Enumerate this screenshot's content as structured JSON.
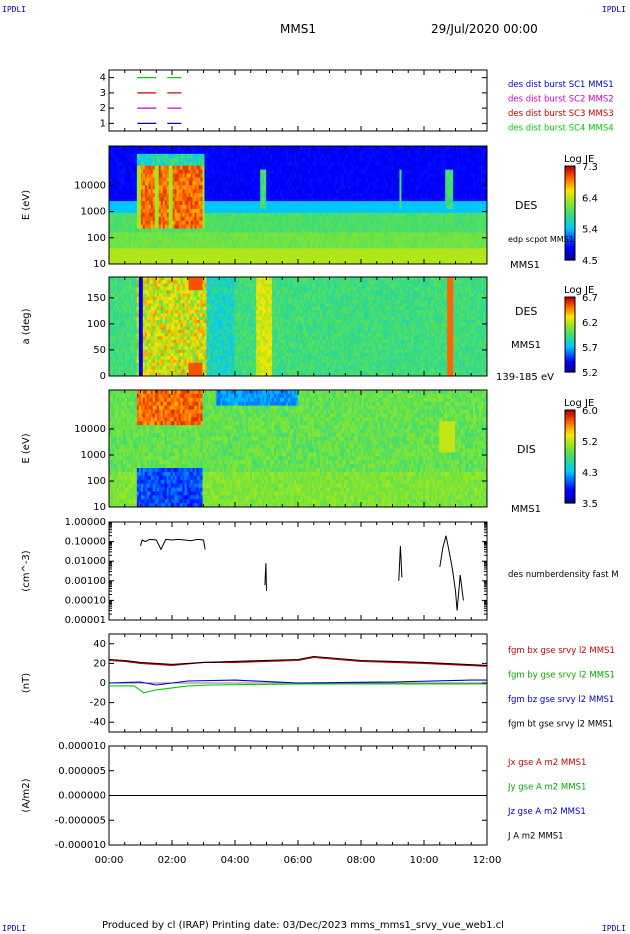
{
  "corners": {
    "tl": "IPDLI",
    "tr": "IPDLI",
    "bl": "IPDLI",
    "br": "IPDLI"
  },
  "header": {
    "title": "MMS1",
    "date": "29/Jul/2020 00:00"
  },
  "footer": {
    "text": "Produced by cl (IRAP)   Printing date: 03/Dec/2023   mms_mms1_srvy_vue_web1.cl"
  },
  "colors": {
    "mms1": "#0000cc",
    "mms2": "#cc00cc",
    "mms3": "#cc0000",
    "mms4": "#00cc00"
  },
  "chart_data": [
    {
      "id": "availability",
      "type": "line",
      "ylabel": "",
      "yticks": [
        "1",
        "2",
        "3",
        "4"
      ],
      "ylim": [
        0.5,
        4.5
      ],
      "legend": [
        "des dist burst SC1 MMS1",
        "des dist burst SC2 MMS2",
        "des dist burst SC3 MMS3",
        "des dist burst SC4 MMS4"
      ],
      "series": [
        {
          "name": "des dist burst SC4 MMS4",
          "y": 4,
          "segments": [
            [
              0.9,
              1.5
            ],
            [
              1.85,
              2.3
            ]
          ],
          "color": "#00cc00"
        },
        {
          "name": "des dist burst SC3 MMS3",
          "y": 3,
          "segments": [
            [
              0.9,
              1.5
            ],
            [
              1.85,
              2.3
            ]
          ],
          "color": "#cc0000"
        },
        {
          "name": "des dist burst SC2 MMS2",
          "y": 2,
          "segments": [
            [
              0.9,
              1.5
            ],
            [
              1.85,
              2.3
            ]
          ],
          "color": "#cc00cc"
        },
        {
          "name": "des dist burst SC1 MMS1",
          "y": 1,
          "segments": [
            [
              0.9,
              1.5
            ],
            [
              1.85,
              2.3
            ]
          ],
          "color": "#0000cc"
        }
      ]
    },
    {
      "id": "des-energy",
      "type": "heatmap",
      "ylabel": "E (eV)",
      "yticks": [
        "10",
        "100",
        "1000",
        "10000"
      ],
      "right_labels": [
        "DES",
        "edp scpot MMS1",
        "MMS1"
      ],
      "colorbar": {
        "title": "Log JE",
        "ticks": [
          "7.3",
          "6.4",
          "5.4",
          "4.5"
        ],
        "range": [
          4.5,
          7.3
        ]
      }
    },
    {
      "id": "des-pitch",
      "type": "heatmap",
      "ylabel": "a (deg)",
      "yticks": [
        "0",
        "50",
        "100",
        "150"
      ],
      "right_labels": [
        "DES",
        "MMS1",
        "139-185 eV"
      ],
      "colorbar": {
        "title": "Log JE",
        "ticks": [
          "6.7",
          "6.2",
          "5.7",
          "5.2"
        ],
        "range": [
          5.2,
          6.7
        ]
      }
    },
    {
      "id": "dis-energy",
      "type": "heatmap",
      "ylabel": "E (eV)",
      "yticks": [
        "10",
        "100",
        "1000",
        "10000"
      ],
      "right_labels": [
        "DIS",
        "MMS1"
      ],
      "colorbar": {
        "title": "Log JE",
        "ticks": [
          "6.0",
          "5.2",
          "4.3",
          "3.5"
        ],
        "range": [
          3.5,
          6.0
        ]
      }
    },
    {
      "id": "density",
      "type": "line",
      "ylabel": "(cm^-3)",
      "yticks": [
        "0.00001",
        "0.00010",
        "0.00100",
        "0.01000",
        "0.10000",
        "1.00000"
      ],
      "legend": [
        "des numberdensity fast M"
      ],
      "series": [
        {
          "name": "des numberdensity fast M",
          "color": "#000000",
          "points": [
            [
              1.0,
              0.06
            ],
            [
              1.05,
              0.12
            ],
            [
              1.15,
              0.1
            ],
            [
              1.3,
              0.13
            ],
            [
              1.5,
              0.12
            ],
            [
              1.65,
              0.04
            ],
            [
              1.8,
              0.13
            ],
            [
              2.0,
              0.12
            ],
            [
              2.2,
              0.13
            ],
            [
              2.4,
              0.12
            ],
            [
              2.6,
              0.11
            ],
            [
              2.8,
              0.13
            ],
            [
              3.0,
              0.12
            ],
            [
              3.05,
              0.04
            ],
            [
              4.95,
              0.0006
            ],
            [
              4.98,
              0.008
            ],
            [
              5.0,
              0.0003
            ],
            [
              9.2,
              0.001
            ],
            [
              9.25,
              0.06
            ],
            [
              9.3,
              0.0015
            ],
            [
              10.5,
              0.005
            ],
            [
              10.6,
              0.05
            ],
            [
              10.7,
              0.2
            ],
            [
              10.8,
              0.03
            ],
            [
              10.9,
              0.004
            ],
            [
              11.0,
              0.0003
            ],
            [
              11.05,
              3e-05
            ],
            [
              11.15,
              0.002
            ],
            [
              11.25,
              0.0001
            ]
          ]
        }
      ]
    },
    {
      "id": "bfield",
      "type": "line",
      "ylabel": "(nT)",
      "yticks": [
        "-40",
        "-20",
        "0",
        "20",
        "40"
      ],
      "ylim": [
        -50,
        50
      ],
      "legend": [
        "fgm bx gse srvy l2 MMS1",
        "fgm by gse srvy l2 MMS1",
        "fgm bz gse srvy l2 MMS1",
        "fgm bt gse srvy l2 MMS1"
      ],
      "series": [
        {
          "name": "fgm bx gse srvy l2 MMS1",
          "color": "#cc0000",
          "points": [
            [
              0,
              23
            ],
            [
              0.5,
              22
            ],
            [
              1.0,
              20
            ],
            [
              1.5,
              19
            ],
            [
              2.0,
              18
            ],
            [
              3.0,
              21
            ],
            [
              4.0,
              21
            ],
            [
              6.0,
              23
            ],
            [
              6.5,
              26
            ],
            [
              8,
              22
            ],
            [
              10,
              20
            ],
            [
              12,
              17
            ]
          ]
        },
        {
          "name": "fgm by gse srvy l2 MMS1",
          "color": "#00cc00",
          "points": [
            [
              0,
              -3
            ],
            [
              0.8,
              -3
            ],
            [
              1.1,
              -10
            ],
            [
              1.5,
              -7
            ],
            [
              2.0,
              -5
            ],
            [
              2.5,
              -3
            ],
            [
              3.2,
              -2
            ],
            [
              6,
              -1
            ],
            [
              9,
              -1
            ],
            [
              12,
              -1
            ]
          ]
        },
        {
          "name": "fgm bz gse srvy l2 MMS1",
          "color": "#0000cc",
          "points": [
            [
              0,
              0
            ],
            [
              1.0,
              1
            ],
            [
              1.5,
              -2
            ],
            [
              2.5,
              2
            ],
            [
              4,
              3
            ],
            [
              6,
              0
            ],
            [
              9,
              1
            ],
            [
              11.5,
              3
            ],
            [
              12,
              3
            ]
          ]
        },
        {
          "name": "fgm bt gse srvy l2 MMS1",
          "color": "#000000",
          "points": [
            [
              0,
              24
            ],
            [
              0.5,
              23
            ],
            [
              1.0,
              21
            ],
            [
              1.5,
              20
            ],
            [
              2.0,
              19
            ],
            [
              3.0,
              21
            ],
            [
              4.0,
              22
            ],
            [
              6.0,
              24
            ],
            [
              6.5,
              27
            ],
            [
              8,
              23
            ],
            [
              10,
              21
            ],
            [
              12,
              18
            ]
          ]
        }
      ]
    },
    {
      "id": "current",
      "type": "line",
      "ylabel": "(A/m2)",
      "yticks": [
        "-0.000010",
        "-0.000005",
        "0.000000",
        "0.000005",
        "0.000010"
      ],
      "ylim": [
        -1e-05,
        1e-05
      ],
      "legend": [
        "Jx gse A m2 MMS1",
        "Jy gse A m2 MMS1",
        "Jz gse A m2 MMS1",
        "J A m2 MMS1"
      ],
      "series": [
        {
          "name": "J A m2 MMS1",
          "color": "#000000",
          "points": [
            [
              0,
              0
            ],
            [
              12,
              0
            ]
          ]
        }
      ]
    }
  ],
  "xaxis": {
    "ticks": [
      "00:00",
      "02:00",
      "04:00",
      "06:00",
      "08:00",
      "10:00",
      "12:00"
    ],
    "range": [
      0,
      12
    ]
  }
}
